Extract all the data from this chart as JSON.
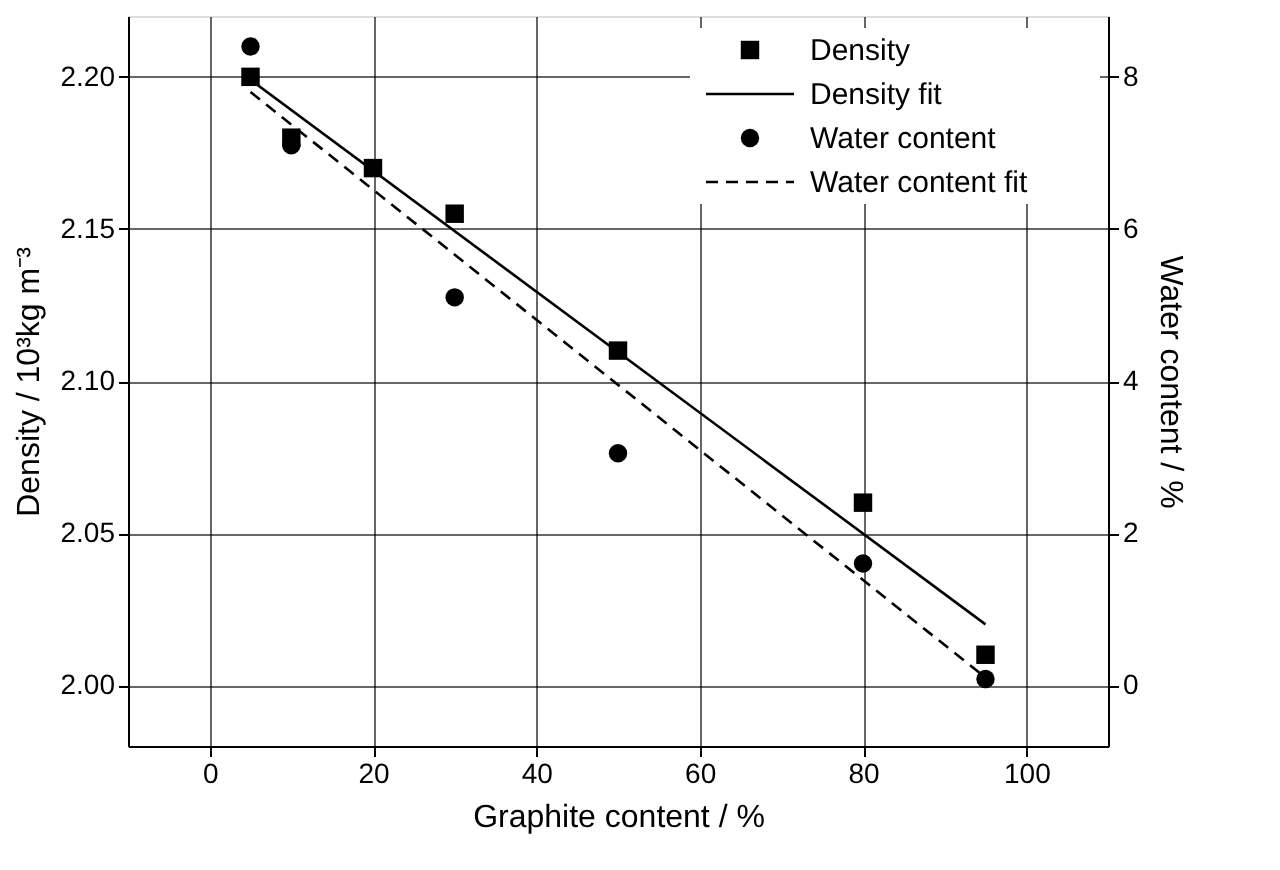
{
  "chart_data": {
    "type": "scatter",
    "xlabel": "Graphite content / %",
    "ylabel": "Density / 10³kg m⁻³",
    "y2label": "Water content / %",
    "xlim": [
      -10,
      110
    ],
    "xticks": [
      0,
      20,
      40,
      60,
      80,
      100
    ],
    "ylim": [
      1.98,
      2.22
    ],
    "yticks": [
      {
        "value": 2.0,
        "label": "2.00"
      },
      {
        "value": 2.05,
        "label": "2.05"
      },
      {
        "value": 2.1,
        "label": "2.10"
      },
      {
        "value": 2.15,
        "label": "2.15"
      },
      {
        "value": 2.2,
        "label": "2.20"
      }
    ],
    "y2lim": [
      -0.8,
      8.8
    ],
    "y2ticks": [
      0,
      2,
      4,
      6,
      8
    ],
    "grid": true,
    "legend": "top right",
    "series": [
      {
        "name": "Density",
        "marker": "square",
        "color": "#000000",
        "x": [
          5,
          10,
          20,
          30,
          50,
          80,
          95
        ],
        "values": [
          2.2,
          2.18,
          2.17,
          2.155,
          2.11,
          2.06,
          2.01
        ]
      },
      {
        "name": "Density fit",
        "type": "line",
        "line_style": "solid",
        "color": "#000000",
        "x": [
          5,
          95
        ],
        "values": [
          2.199,
          2.02
        ]
      },
      {
        "name": "Water content",
        "marker": "circle",
        "axis": "y2",
        "color": "#000000",
        "x": [
          5,
          10,
          20,
          30,
          50,
          80,
          95
        ],
        "values": [
          8.4,
          7.1,
          null,
          5.1,
          3.05,
          1.6,
          0.08
        ]
      },
      {
        "name": "Water content fit",
        "type": "line",
        "line_style": "dashed",
        "axis": "y2",
        "color": "#000000",
        "x": [
          5,
          95
        ],
        "values": [
          7.8,
          0.1
        ]
      }
    ]
  }
}
